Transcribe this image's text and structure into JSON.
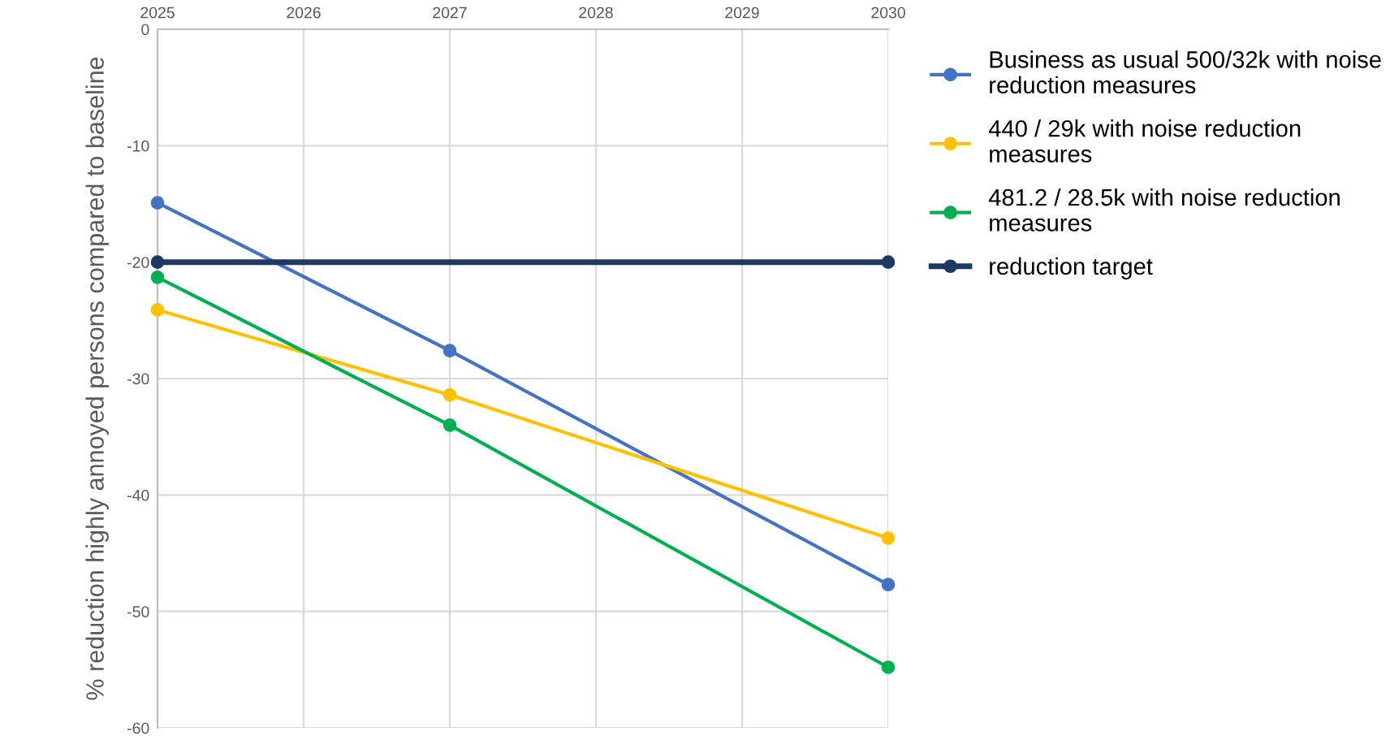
{
  "chart_data": {
    "type": "line",
    "ylabel": "% reduction highly annoyed persons compared to baseline",
    "xlim": [
      2025,
      2030
    ],
    "xticks": [
      2025,
      2026,
      2027,
      2028,
      2029,
      2030
    ],
    "ylim": [
      -60,
      0
    ],
    "yticks": [
      {
        "value": -60,
        "label": "-60"
      },
      {
        "value": -50,
        "label": "-50"
      },
      {
        "value": -40,
        "label": "-40"
      },
      {
        "value": -30,
        "label": "-30"
      },
      {
        "value": -20,
        "label": "-20"
      },
      {
        "value": -10,
        "label": "-10"
      },
      0
    ],
    "grid": true,
    "legend": "right",
    "marker": "circle",
    "series": [
      {
        "name": "Business as usual 500/32k with noise reduction measures",
        "color": "#4472c4",
        "x": [
          2025,
          2027,
          2030
        ],
        "values": [
          -14.9,
          -27.6,
          -47.7
        ]
      },
      {
        "name": "440 / 29k with noise reduction measures",
        "color": "#ffc000",
        "x": [
          2025,
          2027,
          2030
        ],
        "values": [
          -24.1,
          -31.4,
          -43.7
        ]
      },
      {
        "name": "481.2 / 28.5k with noise reduction measures",
        "color": "#00b050",
        "x": [
          2025,
          2027,
          2030
        ],
        "values": [
          -21.3,
          -34.0,
          -54.8
        ]
      },
      {
        "name": "reduction target",
        "color": "#203864",
        "x": [
          2025,
          2030
        ],
        "values": [
          -20,
          -20
        ]
      }
    ]
  }
}
